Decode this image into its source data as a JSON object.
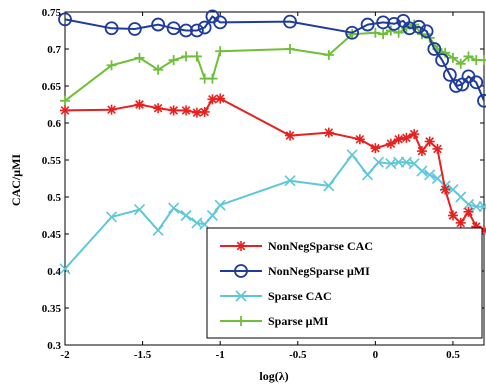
{
  "chart_data": {
    "type": "line",
    "xlabel": "log(λ)",
    "ylabel": "CAC/μMI",
    "xlim": [
      -2,
      0.7
    ],
    "ylim": [
      0.3,
      0.75
    ],
    "xticks": [
      "-2",
      "-1.5",
      "-1",
      "-0.5",
      "0",
      "0.5"
    ],
    "xtick_values": [
      -2,
      -1.5,
      -1,
      -0.5,
      0,
      0.5
    ],
    "yticks": [
      "0.3",
      "0.35",
      "0.4",
      "0.45",
      "0.5",
      "0.55",
      "0.6",
      "0.65",
      "0.7",
      "0.75"
    ],
    "ytick_values": [
      0.3,
      0.35,
      0.4,
      0.45,
      0.5,
      0.55,
      0.6,
      0.65,
      0.7,
      0.75
    ],
    "grid": false,
    "legend_position": "bottom-right",
    "series": [
      {
        "name": "NonNegSparse CAC",
        "color": "#e8201f",
        "marker": "asterisk",
        "x": [
          -2,
          -1.7,
          -1.52,
          -1.4,
          -1.3,
          -1.22,
          -1.15,
          -1.1,
          -1.05,
          -1.0,
          -0.55,
          -0.3,
          -0.1,
          0.0,
          0.1,
          0.15,
          0.2,
          0.25,
          0.3,
          0.35,
          0.4,
          0.45,
          0.5,
          0.55,
          0.6,
          0.65,
          0.7
        ],
        "y": [
          0.617,
          0.618,
          0.625,
          0.62,
          0.617,
          0.617,
          0.614,
          0.615,
          0.632,
          0.633,
          0.583,
          0.587,
          0.578,
          0.566,
          0.572,
          0.578,
          0.58,
          0.585,
          0.562,
          0.575,
          0.565,
          0.51,
          0.475,
          0.465,
          0.48,
          0.46,
          0.455
        ]
      },
      {
        "name": "NonNegSparse μMI",
        "color": "#1f3b9b",
        "marker": "circle",
        "x": [
          -2,
          -1.7,
          -1.55,
          -1.4,
          -1.3,
          -1.22,
          -1.15,
          -1.1,
          -1.05,
          -1.0,
          -0.55,
          -0.15,
          -0.05,
          0.05,
          0.12,
          0.18,
          0.22,
          0.28,
          0.33,
          0.38,
          0.43,
          0.48,
          0.52,
          0.56,
          0.6,
          0.65,
          0.7
        ],
        "y": [
          0.74,
          0.728,
          0.727,
          0.733,
          0.728,
          0.725,
          0.725,
          0.729,
          0.744,
          0.736,
          0.737,
          0.722,
          0.733,
          0.736,
          0.734,
          0.738,
          0.728,
          0.73,
          0.724,
          0.7,
          0.685,
          0.665,
          0.65,
          0.652,
          0.663,
          0.655,
          0.63
        ]
      },
      {
        "name": "Sparse CAC",
        "color": "#5ec8d8",
        "marker": "x",
        "x": [
          -2,
          -1.7,
          -1.52,
          -1.4,
          -1.3,
          -1.22,
          -1.15,
          -1.1,
          -1.05,
          -1.0,
          -0.55,
          -0.3,
          -0.15,
          -0.05,
          0.02,
          0.1,
          0.15,
          0.2,
          0.25,
          0.3,
          0.35,
          0.4,
          0.45,
          0.5,
          0.55,
          0.6,
          0.65,
          0.7
        ],
        "y": [
          0.403,
          0.473,
          0.483,
          0.455,
          0.485,
          0.475,
          0.465,
          0.463,
          0.475,
          0.489,
          0.522,
          0.515,
          0.557,
          0.53,
          0.547,
          0.545,
          0.547,
          0.547,
          0.545,
          0.535,
          0.53,
          0.525,
          0.515,
          0.51,
          0.5,
          0.49,
          0.487,
          0.487
        ]
      },
      {
        "name": "Sparse μMI",
        "color": "#6fbf3a",
        "marker": "plus",
        "x": [
          -2,
          -1.7,
          -1.52,
          -1.4,
          -1.3,
          -1.22,
          -1.15,
          -1.1,
          -1.05,
          -1.0,
          -0.55,
          -0.3,
          -0.15,
          0.0,
          0.05,
          0.1,
          0.15,
          0.2,
          0.25,
          0.3,
          0.35,
          0.4,
          0.45,
          0.5,
          0.55,
          0.6,
          0.65,
          0.7
        ],
        "y": [
          0.63,
          0.678,
          0.688,
          0.672,
          0.685,
          0.69,
          0.69,
          0.66,
          0.66,
          0.697,
          0.7,
          0.692,
          0.72,
          0.722,
          0.72,
          0.725,
          0.722,
          0.728,
          0.733,
          0.72,
          0.715,
          0.7,
          0.695,
          0.688,
          0.68,
          0.69,
          0.685,
          0.685
        ]
      }
    ]
  }
}
